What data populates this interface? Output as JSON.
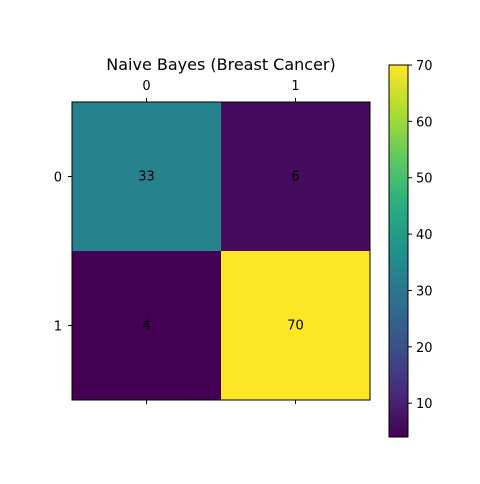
{
  "chart_data": {
    "type": "heatmap",
    "title": "Naive Bayes (Breast Cancer)",
    "x_categories": [
      "0",
      "1"
    ],
    "y_categories": [
      "0",
      "1"
    ],
    "matrix": [
      [
        33,
        6
      ],
      [
        4,
        70
      ]
    ],
    "value_range": [
      4,
      70
    ],
    "colormap": "viridis",
    "x_tick_position": "top",
    "colorbar": {
      "ticks": [
        10,
        20,
        30,
        40,
        50,
        60,
        70
      ],
      "tick_labels": [
        "10",
        "20",
        "30",
        "40",
        "50",
        "60",
        "70"
      ]
    },
    "grid": false
  }
}
